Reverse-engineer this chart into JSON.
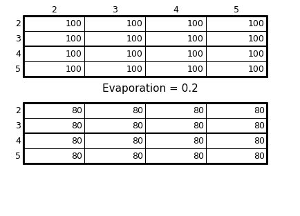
{
  "col_labels": [
    "2",
    "3",
    "4",
    "5"
  ],
  "row_labels": [
    "2",
    "3",
    "4",
    "5"
  ],
  "table1_values": [
    [
      100,
      100,
      100,
      100
    ],
    [
      100,
      100,
      100,
      100
    ],
    [
      100,
      100,
      100,
      100
    ],
    [
      100,
      100,
      100,
      100
    ]
  ],
  "table2_values": [
    [
      80,
      80,
      80,
      80
    ],
    [
      80,
      80,
      80,
      80
    ],
    [
      80,
      80,
      80,
      80
    ],
    [
      80,
      80,
      80,
      80
    ]
  ],
  "evaporation_text": "Evaporation = 0.2",
  "background_color": "#ffffff",
  "text_color": "#000000",
  "font_size": 9,
  "thick_rows": [
    0,
    2
  ],
  "col_label_fontsize": 10,
  "evap_fontsize": 11
}
